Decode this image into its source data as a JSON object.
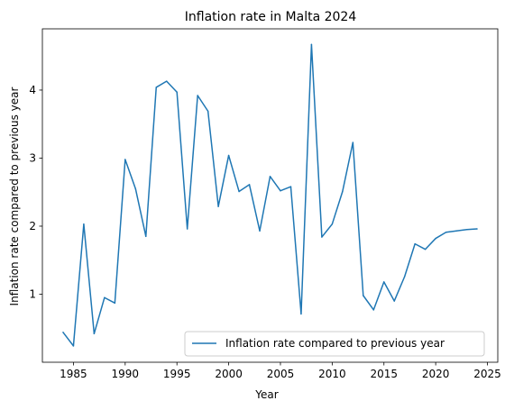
{
  "chart_data": {
    "type": "line",
    "title": "Inflation rate in Malta 2024",
    "xlabel": "Year",
    "ylabel": "Inflation rate compared to previous year",
    "xlim": [
      1982.0,
      2026.0
    ],
    "ylim": [
      0.0,
      4.9
    ],
    "xticks": [
      1985,
      1990,
      1995,
      2000,
      2005,
      2010,
      2015,
      2020,
      2025
    ],
    "yticks": [
      1,
      2,
      3,
      4
    ],
    "grid": false,
    "legend_position": "lower-right",
    "series": [
      {
        "name": "Inflation rate compared to previous year",
        "color": "#1f77b4",
        "x": [
          1984,
          1985,
          1986,
          1987,
          1988,
          1989,
          1990,
          1991,
          1992,
          1993,
          1994,
          1995,
          1996,
          1997,
          1998,
          1999,
          2000,
          2001,
          2002,
          2003,
          2004,
          2005,
          2006,
          2007,
          2008,
          2009,
          2010,
          2011,
          2012,
          2013,
          2014,
          2015,
          2016,
          2017,
          2018,
          2019,
          2020,
          2021,
          2022,
          2023,
          2024
        ],
        "values": [
          0.44,
          0.24,
          2.03,
          0.42,
          0.95,
          0.87,
          2.98,
          2.55,
          1.85,
          4.04,
          4.13,
          3.97,
          1.96,
          3.92,
          3.69,
          2.29,
          3.04,
          2.51,
          2.61,
          1.93,
          2.73,
          2.52,
          2.58,
          0.71,
          4.67,
          1.84,
          2.03,
          2.51,
          3.23,
          0.98,
          0.77,
          1.18,
          0.9,
          1.26,
          1.74,
          1.66,
          1.82,
          1.91,
          1.93,
          1.95,
          1.96
        ]
      }
    ]
  }
}
